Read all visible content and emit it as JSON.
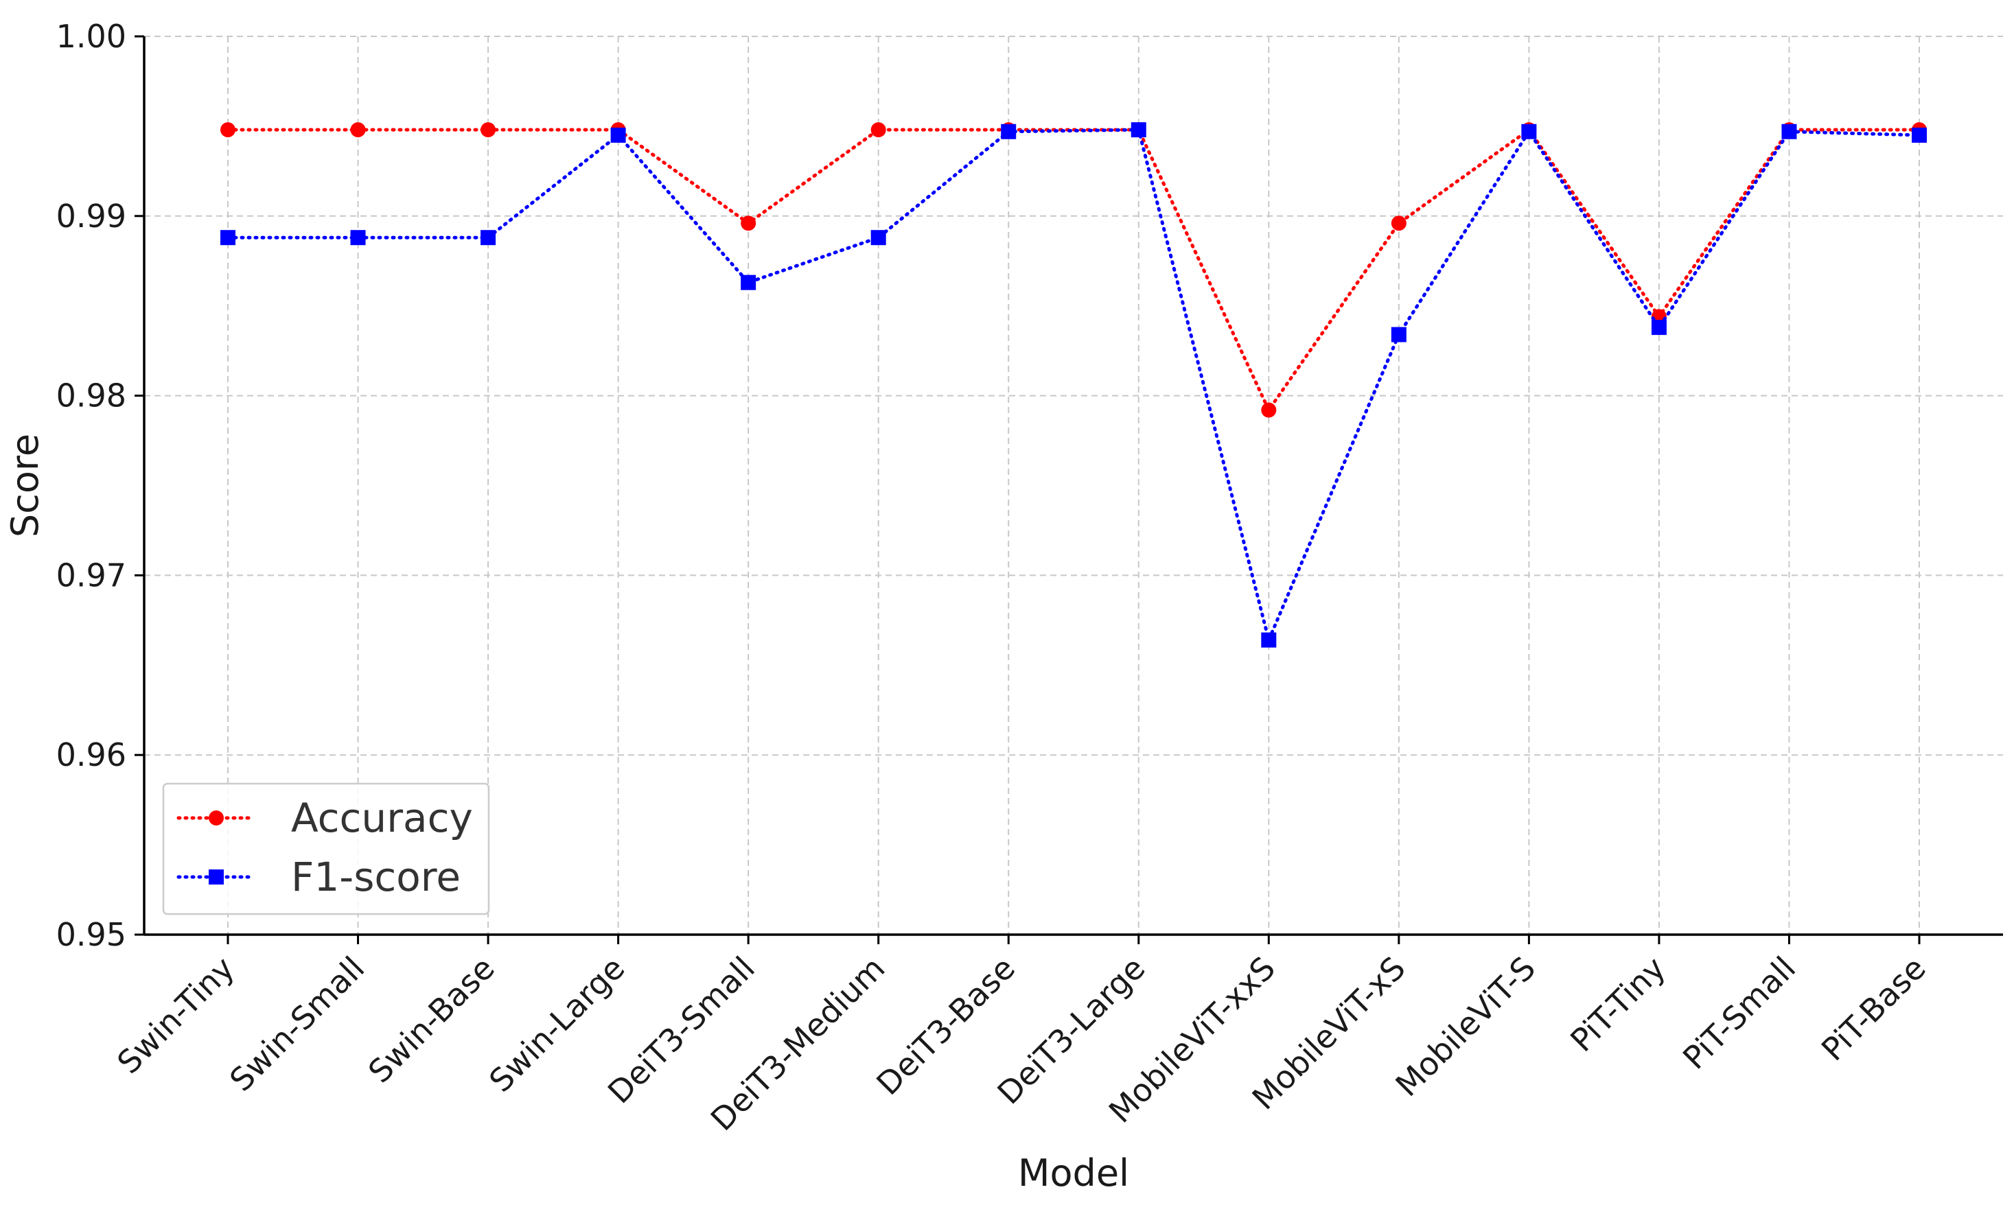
{
  "chart_data": {
    "type": "line",
    "xlabel": "Model",
    "ylabel": "Score",
    "ylim": [
      0.95,
      1.0
    ],
    "yticks": [
      0.95,
      0.96,
      0.97,
      0.98,
      0.99,
      1.0
    ],
    "ytick_labels": [
      "0.95",
      "0.96",
      "0.97",
      "0.98",
      "0.99",
      "1.00"
    ],
    "grid": true,
    "legend_position": "bottom-left",
    "categories": [
      "Swin-Tiny",
      "Swin-Small",
      "Swin-Base",
      "Swin-Large",
      "DeiT3-Small",
      "DeiT3-Medium",
      "DeiT3-Base",
      "DeiT3-Large",
      "MobileViT-xxS",
      "MobileViT-xS",
      "MobileViT-S",
      "PiT-Tiny",
      "PiT-Small",
      "PiT-Base"
    ],
    "series": [
      {
        "name": "Accuracy",
        "color": "#ff0000",
        "marker": "circle",
        "line_style": "dotted",
        "values": [
          0.9948,
          0.9948,
          0.9948,
          0.9948,
          0.9896,
          0.9948,
          0.9948,
          0.9948,
          0.9792,
          0.9896,
          0.9948,
          0.9844,
          0.9948,
          0.9948
        ]
      },
      {
        "name": "F1-score",
        "color": "#0000ff",
        "marker": "square",
        "line_style": "dotted",
        "values": [
          0.9888,
          0.9888,
          0.9888,
          0.9945,
          0.9863,
          0.9888,
          0.9947,
          0.9948,
          0.9664,
          0.9834,
          0.9947,
          0.9838,
          0.9947,
          0.9945
        ]
      }
    ]
  }
}
